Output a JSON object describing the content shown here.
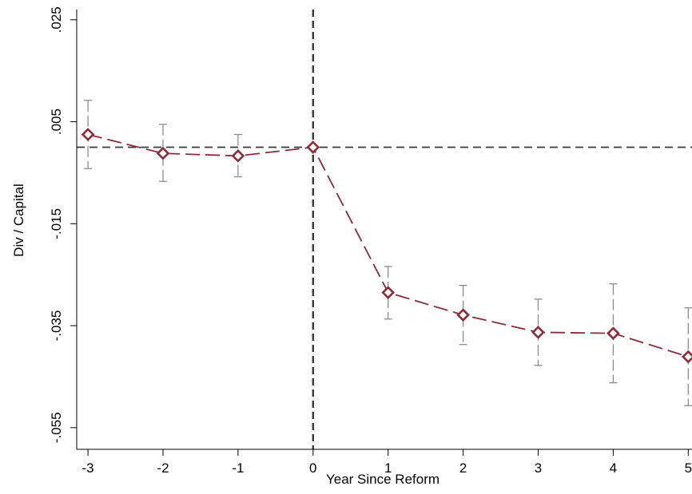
{
  "chart_data": {
    "type": "line",
    "title": "",
    "xlabel": "Year Since Reform",
    "ylabel": "Div / Capital",
    "x": [
      -3,
      -2,
      -1,
      0,
      1,
      2,
      3,
      4,
      5
    ],
    "x_tick_labels": [
      "-3",
      "-2",
      "-1",
      "0",
      "1",
      "2",
      "3",
      "4",
      "5"
    ],
    "y_ticks": [
      0.025,
      0.005,
      -0.015,
      -0.035,
      -0.055
    ],
    "y_tick_labels": [
      ".025",
      ".005",
      "-.015",
      "-.035",
      "-.055"
    ],
    "xlim": [
      -3.15,
      5.05
    ],
    "ylim": [
      -0.058,
      0.027
    ],
    "reference_lines": {
      "x": 0,
      "y": 0
    },
    "grid": false,
    "series": [
      {
        "values": [
          0.0025,
          -0.0012,
          -0.0017,
          0.0,
          -0.0285,
          -0.0329,
          -0.0363,
          -0.0365,
          -0.0411
        ],
        "ci_low": [
          -0.0042,
          -0.0067,
          -0.0058,
          0.0,
          -0.0337,
          -0.0387,
          -0.0428,
          -0.0462,
          -0.0507
        ],
        "ci_high": [
          0.0092,
          0.0045,
          0.0025,
          0.0,
          -0.0234,
          -0.0271,
          -0.0298,
          -0.0268,
          -0.0315
        ],
        "color": "#8b2c3a",
        "ci_color": "#8c8c8c",
        "marker": "diamond",
        "line_style": "dashed"
      }
    ]
  }
}
